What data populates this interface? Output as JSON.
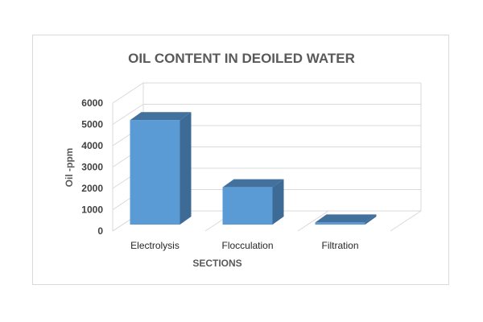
{
  "chart_data": {
    "type": "bar",
    "title": "OIL CONTENT IN DEOILED WATER",
    "xlabel": "SECTIONS",
    "ylabel": "Oil -ppm",
    "categories": [
      "Electrolysis",
      "Flocculation",
      "Filtration"
    ],
    "values": [
      5200,
      2050,
      400
    ],
    "ylim": [
      0,
      6000
    ],
    "yticks": [
      0,
      1000,
      2000,
      3000,
      4000,
      5000,
      6000
    ],
    "grid": true,
    "three_d": true,
    "legend": "none",
    "colors": {
      "bar_front": "#5b9bd5",
      "bar_side": "#3d6b95",
      "bar_top": "#41719c"
    }
  }
}
